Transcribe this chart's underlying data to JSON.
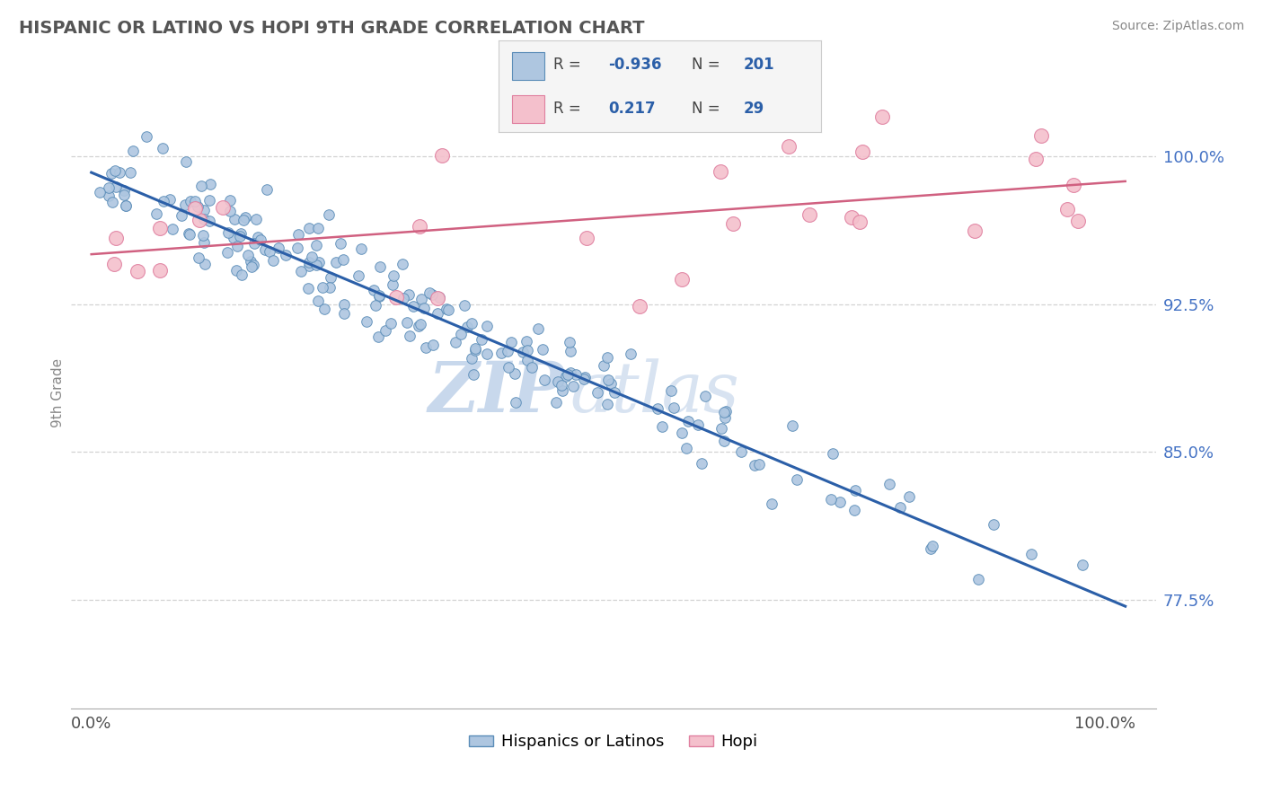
{
  "title": "HISPANIC OR LATINO VS HOPI 9TH GRADE CORRELATION CHART",
  "source": "Source: ZipAtlas.com",
  "ylabel": "9th Grade",
  "watermark_zip": "ZIP",
  "watermark_atlas": "atlas",
  "legend_entries": [
    {
      "label": "Hispanics or Latinos",
      "R": -0.936,
      "N": 201,
      "color": "#aec6e0",
      "edge_color": "#5b8db8",
      "line_color": "#2b5fa8"
    },
    {
      "label": "Hopi",
      "R": 0.217,
      "N": 29,
      "color": "#f4c0cc",
      "edge_color": "#e080a0",
      "line_color": "#d06080"
    }
  ],
  "ytick_labels": [
    "77.5%",
    "85.0%",
    "92.5%",
    "100.0%"
  ],
  "ytick_values": [
    0.775,
    0.85,
    0.925,
    1.0
  ],
  "xtick_labels": [
    "0.0%",
    "100.0%"
  ],
  "xtick_values": [
    0.0,
    1.0
  ],
  "xlim": [
    -0.02,
    1.05
  ],
  "ylim": [
    0.72,
    1.04
  ],
  "background_color": "#ffffff",
  "grid_color": "#c8c8c8",
  "title_color": "#555555",
  "source_color": "#888888",
  "ytick_color": "#4472c4",
  "seed": 42,
  "blue_intercept": 0.99,
  "blue_slope": -0.215,
  "blue_noise": 0.012,
  "pink_intercept": 0.945,
  "pink_slope": 0.04,
  "pink_noise": 0.025
}
